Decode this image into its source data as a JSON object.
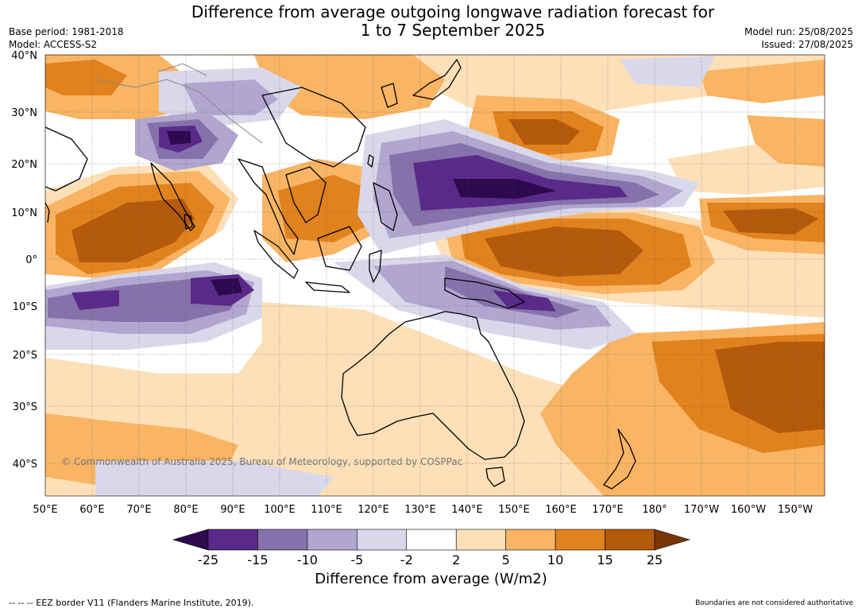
{
  "title_line1": "Difference from average outgoing longwave radiation forecast for",
  "title_line2": "1 to 7 September 2025",
  "base_period": "Base period: 1981-2018",
  "model": "Model: ACCESS-S2",
  "model_run": "Model run: 25/08/2025",
  "issued": "Issued: 27/08/2025",
  "copyright": "© Commonwealth of Australia 2025, Bureau of Meteorology, supported by COSPPac",
  "lat_labels": [
    "40°N",
    "30°N",
    "20°N",
    "10°N",
    "0°",
    "10°S",
    "20°S",
    "30°S",
    "40°S"
  ],
  "lon_labels": [
    "50°E",
    "60°E",
    "70°E",
    "80°E",
    "90°E",
    "100°E",
    "110°E",
    "120°E",
    "130°E",
    "140°E",
    "150°E",
    "160°E",
    "170°E",
    "180°",
    "170°W",
    "160°W",
    "150°W"
  ],
  "colorbar": {
    "ticks": [
      "-25",
      "-15",
      "-10",
      "-5",
      "-2",
      "2",
      "5",
      "10",
      "15",
      "25"
    ],
    "colors": [
      "#2d0a4e",
      "#5a2a8a",
      "#8672ab",
      "#b0a6cf",
      "#d9d7ea",
      "#ffffff",
      "#fde0b8",
      "#f9b464",
      "#e0821e",
      "#b45a0c",
      "#7a3506"
    ],
    "label": "Difference from average (W/m2)"
  },
  "footer_left": "--  --  -- EEZ border V11 (Flanders Marine Institute, 2019).",
  "footer_right": "Boundaries are not considered authoritative"
}
